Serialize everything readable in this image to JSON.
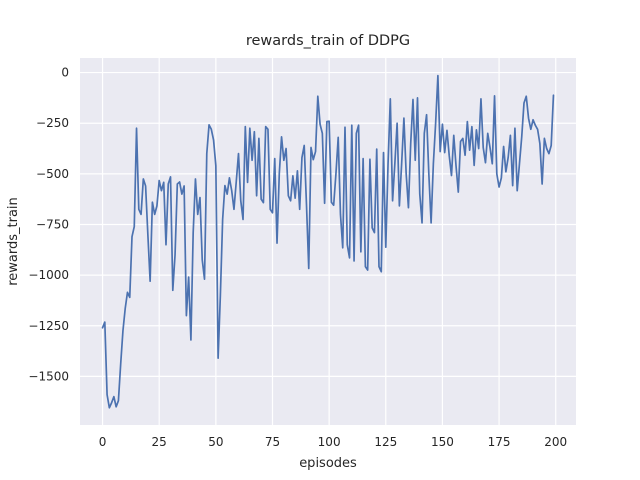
{
  "chart_data": {
    "type": "line",
    "title": "rewards_train of DDPG",
    "xlabel": "episodes",
    "ylabel": "rewards_train",
    "x_start": 0,
    "x_step": 1,
    "xticks": [
      0,
      25,
      50,
      75,
      100,
      125,
      150,
      175,
      200
    ],
    "xtick_labels": [
      "0",
      "25",
      "50",
      "75",
      "100",
      "125",
      "150",
      "175",
      "200"
    ],
    "yticks": [
      0,
      -250,
      -500,
      -750,
      -1000,
      -1250,
      -1500
    ],
    "ytick_labels": [
      "0",
      "−250",
      "−500",
      "−750",
      "−1000",
      "−1250",
      "−1500"
    ],
    "xlim": [
      -9.95,
      208.95
    ],
    "ylim": [
      -1740,
      72
    ],
    "grid": true,
    "legend_position": "none",
    "style": {
      "axes_background": "#eaeaf2",
      "grid_color": "#ffffff",
      "figure_background": "#ffffff",
      "text_color": "#262626",
      "line_color": "#4c72b0",
      "line_width": 1.7
    },
    "series": [
      {
        "name": "rewards_train",
        "color": "#4c72b0",
        "values": [
          -1260,
          -1232,
          -1590,
          -1655,
          -1630,
          -1600,
          -1650,
          -1620,
          -1440,
          -1275,
          -1165,
          -1085,
          -1110,
          -810,
          -760,
          -275,
          -675,
          -700,
          -525,
          -560,
          -800,
          -1030,
          -640,
          -700,
          -658,
          -533,
          -583,
          -542,
          -850,
          -550,
          -515,
          -1075,
          -900,
          -550,
          -540,
          -600,
          -560,
          -1200,
          -1010,
          -1320,
          -790,
          -525,
          -700,
          -617,
          -925,
          -1020,
          -400,
          -258,
          -280,
          -333,
          -460,
          -1410,
          -1100,
          -725,
          -558,
          -600,
          -520,
          -583,
          -675,
          -540,
          -400,
          -633,
          -725,
          -267,
          -542,
          -275,
          -433,
          -292,
          -608,
          -325,
          -625,
          -642,
          -267,
          -280,
          -675,
          -692,
          -425,
          -842,
          -500,
          -317,
          -433,
          -375,
          -608,
          -633,
          -510,
          -620,
          -485,
          -675,
          -420,
          -360,
          -650,
          -967,
          -370,
          -430,
          -390,
          -117,
          -255,
          -300,
          -645,
          -242,
          -240,
          -640,
          -655,
          -500,
          -320,
          -700,
          -865,
          -270,
          -850,
          -915,
          -260,
          -930,
          -300,
          -260,
          -885,
          -425,
          -958,
          -975,
          -428,
          -767,
          -790,
          -378,
          -958,
          -983,
          -395,
          -862,
          -450,
          -130,
          -633,
          -450,
          -250,
          -658,
          -450,
          -225,
          -500,
          -667,
          -350,
          -133,
          -433,
          -125,
          -600,
          -742,
          -300,
          -208,
          -500,
          -742,
          -450,
          -250,
          -15,
          -390,
          -255,
          -395,
          -285,
          -410,
          -508,
          -310,
          -460,
          -590,
          -340,
          -325,
          -408,
          -242,
          -383,
          -267,
          -458,
          -283,
          -375,
          -130,
          -370,
          -445,
          -300,
          -370,
          -450,
          -115,
          -500,
          -565,
          -520,
          -365,
          -490,
          -420,
          -310,
          -558,
          -275,
          -583,
          -450,
          -317,
          -150,
          -117,
          -225,
          -280,
          -233,
          -260,
          -280,
          -350,
          -550,
          -325,
          -375,
          -400,
          -360,
          -112
        ]
      }
    ]
  }
}
